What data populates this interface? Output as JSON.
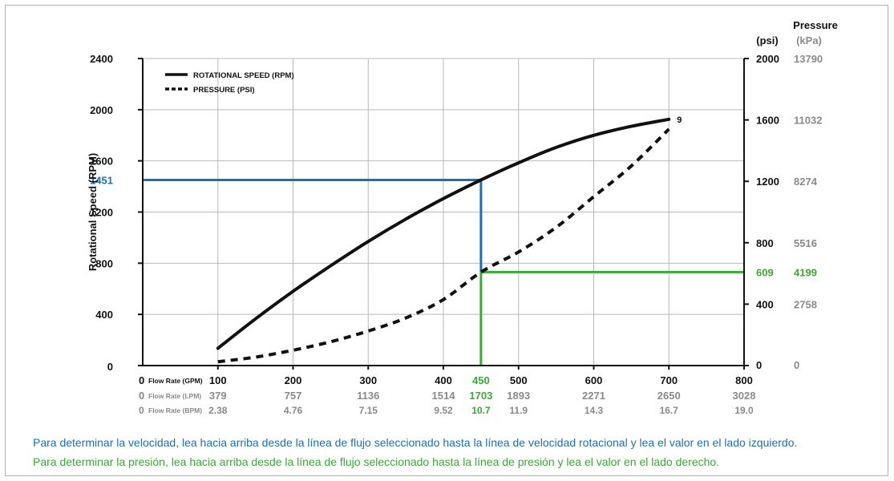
{
  "colors": {
    "blue": "#1f6fad",
    "green": "#3aa935",
    "gray": "#8a8a8a",
    "black": "#111111",
    "grid": "#b9b9b9",
    "border": "#b0b0b0"
  },
  "chart_data": {
    "type": "line",
    "title": "",
    "ylabel": "Rotational Speed (RPM)",
    "y2_title": "Pressure",
    "y2_unit_psi": "(psi)",
    "y2_unit_kpa": "(kPa)",
    "ylim": [
      0,
      2400
    ],
    "y2lim_psi": [
      0,
      2000
    ],
    "xlim_gpm": [
      0,
      800
    ],
    "grid": true,
    "legend_position": "top-left",
    "left_ticks": [
      "0",
      "400",
      "800",
      "1200",
      "1600",
      "2000",
      "2400"
    ],
    "right_ticks_psi": [
      "0",
      "400",
      "800",
      "1200",
      "1600",
      "2000"
    ],
    "right_ticks_kpa": [
      "0",
      "2758",
      "5516",
      "8274",
      "11032",
      "13790"
    ],
    "x_rows": [
      {
        "label": "Flow Rate (GPM)",
        "zero": "0",
        "ticks": [
          "100",
          "200",
          "300",
          "400",
          "500",
          "600",
          "700",
          "800"
        ]
      },
      {
        "label": "Flow Rate (LPM)",
        "zero": "0",
        "ticks": [
          "379",
          "757",
          "1136",
          "1514",
          "1893",
          "2271",
          "2650",
          "3028"
        ]
      },
      {
        "label": "Flow Rate (BPM)",
        "zero": "0",
        "ticks": [
          "2.38",
          "4.76",
          "7.15",
          "9.52",
          "11.9",
          "14.3",
          "16.7",
          "19.0"
        ]
      }
    ],
    "series": [
      {
        "name": "ROTATIONAL SPEED (RPM)",
        "style": "solid",
        "axis": "left",
        "x": [
          100,
          150,
          200,
          250,
          300,
          350,
          400,
          450,
          500,
          550,
          600,
          650,
          700
        ],
        "y": [
          135,
          365,
          580,
          780,
          970,
          1145,
          1305,
          1451,
          1585,
          1705,
          1800,
          1870,
          1925
        ]
      },
      {
        "name": "PRESSURE (PSI)",
        "style": "dashed",
        "axis": "right_psi",
        "x": [
          100,
          150,
          200,
          250,
          300,
          350,
          400,
          450,
          500,
          550,
          600,
          650,
          700
        ],
        "y": [
          25,
          55,
          100,
          155,
          225,
          310,
          430,
          609,
          740,
          900,
          1100,
          1300,
          1540
        ]
      }
    ],
    "curve_end_label": "9",
    "highlight": {
      "x_gpm": 450,
      "x_gpm_label": "450",
      "x_lpm_label": "1703",
      "x_bpm_label": "10.7",
      "rpm_value": 1451,
      "rpm_label": "1451",
      "psi_value": 609,
      "psi_label": "609",
      "kpa_label": "4199"
    }
  },
  "notes": {
    "speed": "Para determinar la velocidad, lea hacia arriba desde la línea de flujo seleccionado hasta la línea de velocidad rotacional y lea el valor en el lado izquierdo.",
    "pressure": "Para determinar la presión, lea hacia arriba desde la línea de flujo seleccionado hasta la línea de presión y lea el valor en el lado derecho."
  }
}
